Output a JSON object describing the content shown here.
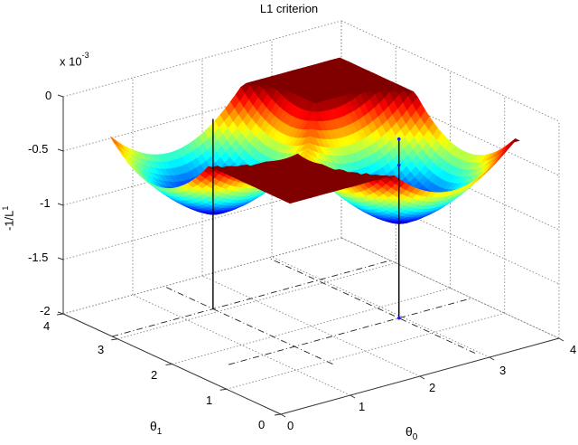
{
  "chart_data": {
    "type": "surface3d",
    "title": "L1 criterion",
    "xlabel": "θ0",
    "ylabel": "θ1",
    "zlabel": "-1/L^1",
    "zlabel_main": "-1/L",
    "zlabel_sup": "1",
    "z_exponent_label": "x 10",
    "z_exponent_sup": "-3",
    "x_ticks": [
      "0",
      "1",
      "2",
      "3",
      "4"
    ],
    "y_ticks": [
      "0",
      "1",
      "2",
      "3",
      "4"
    ],
    "z_ticks": [
      "0",
      "-0.5",
      "-1",
      "-1.5",
      "-2"
    ],
    "xlim": [
      0,
      4
    ],
    "ylim": [
      0,
      4
    ],
    "zlim": [
      -0.002,
      0
    ],
    "grid": true,
    "colormap": "jet",
    "surface": {
      "domain": [
        0.6,
        3.9
      ],
      "minima": [
        {
          "theta0": 1.45,
          "theta1": 3.1,
          "z": -0.00113
        },
        {
          "theta0": 2.95,
          "theta1": 1.6,
          "z": -0.00113
        }
      ],
      "ridge": "diagonal theta0 = theta1, peak approx -0.00035 at (3.9, 3.9)",
      "corner_values_approx": -0.0003
    },
    "stems": [
      {
        "theta0": 1.45,
        "theta1": 3.1,
        "z_top": -0.00025,
        "z_bottom": -0.002,
        "color": "#000000",
        "markers": false
      },
      {
        "theta0": 2.95,
        "theta1": 1.6,
        "z_top": -0.00035,
        "z_bottom": -0.002,
        "color": "#000000",
        "markers": true,
        "marker_color": "#1a1aff",
        "marker_z": [
          -0.00035,
          -0.00059,
          -0.002
        ]
      }
    ],
    "projection_lines": [
      {
        "style": "dash-dot",
        "desc": "constant theta1 through minima on floor"
      },
      {
        "style": "dash-dot",
        "desc": "constant theta0 through minima on floor"
      }
    ]
  }
}
